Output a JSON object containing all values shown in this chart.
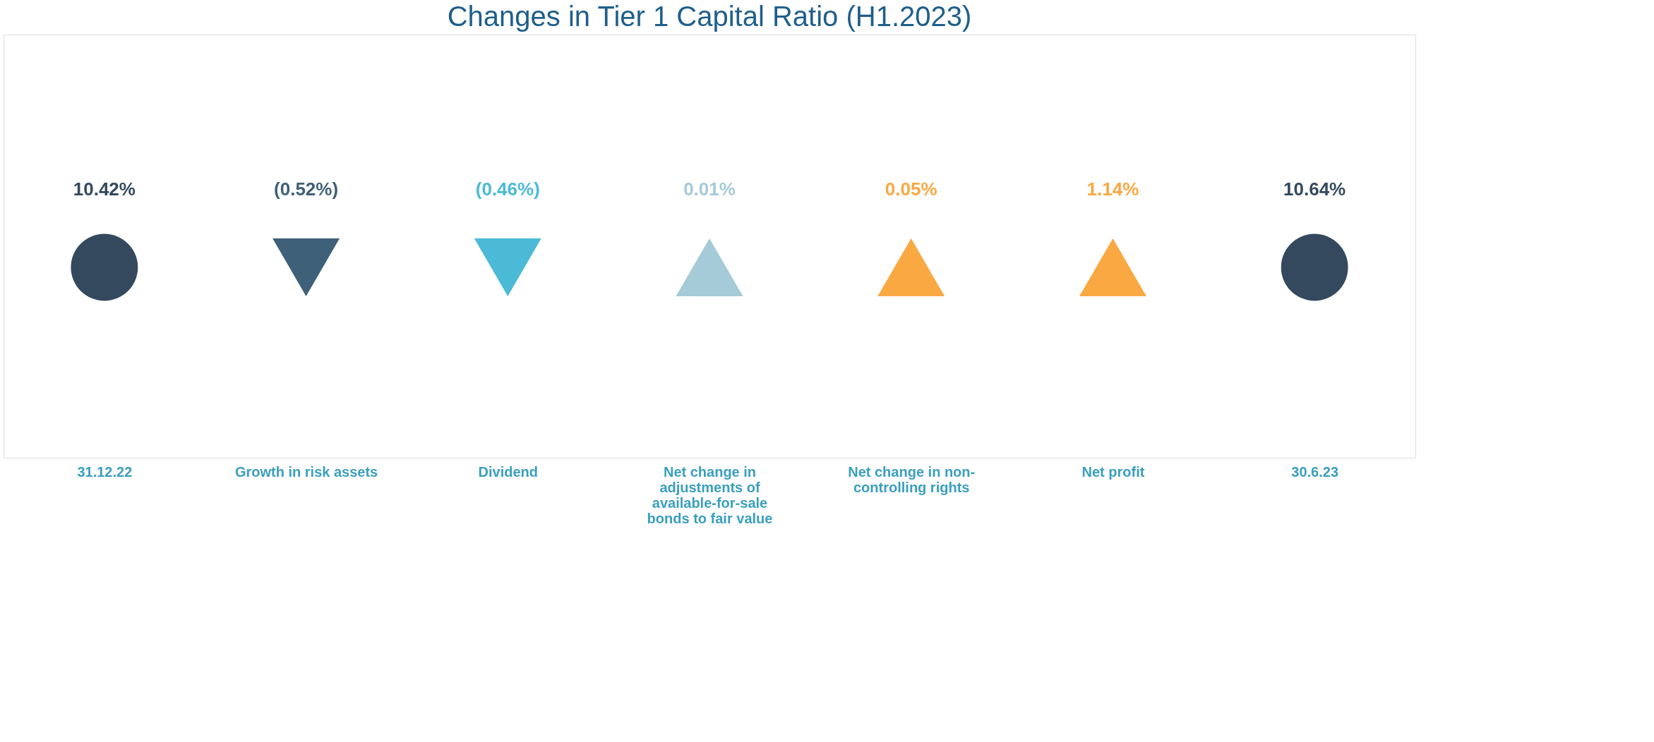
{
  "chart_data": {
    "type": "other",
    "title": "Changes in Tier 1 Capital Ratio (H1.2023)",
    "categories": [
      "31.12.22",
      "Growth in risk assets",
      "Dividend",
      "Net change in adjustments of available-for-sale bonds to fair value",
      "Net change in non-controlling rights",
      "Net profit",
      "30.6.23"
    ],
    "values": [
      10.42,
      -0.52,
      -0.46,
      0.01,
      0.05,
      1.14,
      10.64
    ],
    "value_labels": [
      "10.42%",
      "(0.52%)",
      "(0.46%)",
      "0.01%",
      "0.05%",
      "1.14%",
      "10.64%"
    ],
    "colors": [
      "#34495e",
      "#3f6079",
      "#4bbad6",
      "#a5cad8",
      "#f9a842",
      "#f9a842",
      "#34495e"
    ]
  }
}
